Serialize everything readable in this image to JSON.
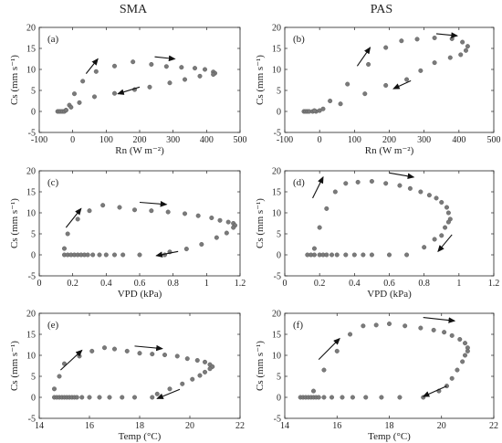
{
  "column_titles": [
    "SMA",
    "PAS"
  ],
  "chart_data": [
    {
      "type": "scatter",
      "panel": "(a)",
      "column": "SMA",
      "xlabel": "Rn (W m⁻²)",
      "ylabel": "Cs (mm s⁻¹)",
      "xlim": [
        -100,
        500
      ],
      "ylim": [
        -5,
        20
      ],
      "xticks": [
        -100,
        0,
        100,
        200,
        300,
        400,
        500
      ],
      "yticks": [
        -5,
        0,
        5,
        10,
        15,
        20
      ],
      "points": [
        [
          -45,
          0
        ],
        [
          -40,
          0
        ],
        [
          -35,
          0
        ],
        [
          -30,
          0
        ],
        [
          -25,
          0
        ],
        [
          -20,
          0.3
        ],
        [
          -10,
          1.5
        ],
        [
          5,
          4.2
        ],
        [
          30,
          7.2
        ],
        [
          70,
          9.5
        ],
        [
          125,
          10.8
        ],
        [
          180,
          11.8
        ],
        [
          235,
          11.2
        ],
        [
          280,
          10.7
        ],
        [
          325,
          10.5
        ],
        [
          365,
          10.3
        ],
        [
          395,
          10
        ],
        [
          420,
          9.4
        ],
        [
          425,
          9.1
        ],
        [
          420,
          8.8
        ],
        [
          380,
          8.4
        ],
        [
          335,
          7.6
        ],
        [
          290,
          6.8
        ],
        [
          230,
          5.8
        ],
        [
          185,
          5.2
        ],
        [
          125,
          4.3
        ],
        [
          65,
          3.5
        ],
        [
          20,
          2.1
        ],
        [
          -5,
          1
        ],
        [
          -20,
          0.3
        ]
      ],
      "arrows": [
        [
          [
            40,
            9
          ],
          [
            75,
            12.5
          ]
        ],
        [
          [
            245,
            13
          ],
          [
            305,
            12.5
          ]
        ],
        [
          [
            200,
            5.8
          ],
          [
            135,
            4.2
          ]
        ]
      ]
    },
    {
      "type": "scatter",
      "panel": "(b)",
      "column": "PAS",
      "xlabel": "Rn (W m⁻²)",
      "ylabel": "Cs (mm s⁻¹)",
      "xlim": [
        -100,
        500
      ],
      "ylim": [
        -5,
        20
      ],
      "xticks": [
        -100,
        0,
        100,
        200,
        300,
        400,
        500
      ],
      "yticks": [
        -5,
        0,
        5,
        10,
        15,
        20
      ],
      "points": [
        [
          -45,
          0
        ],
        [
          -40,
          0
        ],
        [
          -35,
          0
        ],
        [
          -30,
          0
        ],
        [
          -20,
          0
        ],
        [
          -10,
          0
        ],
        [
          0,
          0.2
        ],
        [
          30,
          2.5
        ],
        [
          80,
          6.5
        ],
        [
          140,
          11.2
        ],
        [
          190,
          15.2
        ],
        [
          235,
          16.8
        ],
        [
          280,
          17.2
        ],
        [
          330,
          17.5
        ],
        [
          380,
          17.3
        ],
        [
          410,
          16.5
        ],
        [
          425,
          15.5
        ],
        [
          420,
          14.5
        ],
        [
          405,
          13.5
        ],
        [
          375,
          12.8
        ],
        [
          330,
          11.6
        ],
        [
          290,
          9.7
        ],
        [
          250,
          7.6
        ],
        [
          190,
          6.2
        ],
        [
          130,
          4.2
        ],
        [
          60,
          1.8
        ],
        [
          10,
          0.6
        ],
        [
          -15,
          0.2
        ]
      ],
      "arrows": [
        [
          [
            108,
            10.8
          ],
          [
            145,
            15.2
          ]
        ],
        [
          [
            335,
            18.5
          ],
          [
            395,
            18
          ]
        ],
        [
          [
            262,
            7.3
          ],
          [
            212,
            5.4
          ]
        ]
      ]
    },
    {
      "type": "scatter",
      "panel": "(c)",
      "column": "SMA",
      "xlabel": "VPD (kPa)",
      "ylabel": "Cs (mm s⁻¹)",
      "xlim": [
        0,
        1.2
      ],
      "ylim": [
        -5,
        20
      ],
      "xticks": [
        0,
        0.2,
        0.4,
        0.6,
        0.8,
        1,
        1.2
      ],
      "yticks": [
        -5,
        0,
        5,
        10,
        15,
        20
      ],
      "points": [
        [
          0.15,
          0
        ],
        [
          0.17,
          0
        ],
        [
          0.19,
          0
        ],
        [
          0.21,
          0
        ],
        [
          0.23,
          0
        ],
        [
          0.25,
          0
        ],
        [
          0.27,
          0
        ],
        [
          0.29,
          0
        ],
        [
          0.32,
          0
        ],
        [
          0.36,
          0
        ],
        [
          0.4,
          0
        ],
        [
          0.45,
          0
        ],
        [
          0.5,
          0
        ],
        [
          0.6,
          0
        ],
        [
          0.75,
          0
        ],
        [
          0.15,
          1.5
        ],
        [
          0.17,
          5
        ],
        [
          0.23,
          8.5
        ],
        [
          0.3,
          10.5
        ],
        [
          0.38,
          11.8
        ],
        [
          0.48,
          11.3
        ],
        [
          0.57,
          10.7
        ],
        [
          0.67,
          10.5
        ],
        [
          0.77,
          10.2
        ],
        [
          0.87,
          9.8
        ],
        [
          0.95,
          9.3
        ],
        [
          1.03,
          8.8
        ],
        [
          1.08,
          8.2
        ],
        [
          1.13,
          7.8
        ],
        [
          1.16,
          7.5
        ],
        [
          1.17,
          7
        ],
        [
          1.16,
          6.5
        ],
        [
          1.12,
          5.2
        ],
        [
          1.06,
          4.1
        ],
        [
          0.97,
          2.5
        ],
        [
          0.88,
          1.4
        ],
        [
          0.78,
          0.7
        ]
      ],
      "arrows": [
        [
          [
            0.16,
            6.5
          ],
          [
            0.25,
            11
          ]
        ],
        [
          [
            0.6,
            12.5
          ],
          [
            0.76,
            12
          ]
        ],
        [
          [
            0.83,
            0.8
          ],
          [
            0.7,
            -0.2
          ]
        ]
      ]
    },
    {
      "type": "scatter",
      "panel": "(d)",
      "column": "PAS",
      "xlabel": "VPD (kPa)",
      "ylabel": "Cs (mm s⁻¹)",
      "xlim": [
        0,
        1.2
      ],
      "ylim": [
        -5,
        20
      ],
      "xticks": [
        0,
        0.2,
        0.4,
        0.6,
        0.8,
        1,
        1.2
      ],
      "yticks": [
        -5,
        0,
        5,
        10,
        15,
        20
      ],
      "points": [
        [
          0.13,
          0
        ],
        [
          0.15,
          0
        ],
        [
          0.17,
          0
        ],
        [
          0.2,
          0
        ],
        [
          0.22,
          0
        ],
        [
          0.24,
          0
        ],
        [
          0.27,
          0
        ],
        [
          0.3,
          0
        ],
        [
          0.35,
          0
        ],
        [
          0.4,
          0
        ],
        [
          0.45,
          0
        ],
        [
          0.5,
          0
        ],
        [
          0.6,
          0
        ],
        [
          0.7,
          0
        ],
        [
          0.17,
          1.5
        ],
        [
          0.2,
          6.5
        ],
        [
          0.24,
          11
        ],
        [
          0.29,
          15
        ],
        [
          0.35,
          17
        ],
        [
          0.42,
          17.3
        ],
        [
          0.5,
          17.5
        ],
        [
          0.58,
          17
        ],
        [
          0.66,
          16.5
        ],
        [
          0.72,
          15.8
        ],
        [
          0.78,
          15
        ],
        [
          0.83,
          14.2
        ],
        [
          0.87,
          13.5
        ],
        [
          0.9,
          12.5
        ],
        [
          0.93,
          11.3
        ],
        [
          0.94,
          10
        ],
        [
          0.95,
          8.5
        ],
        [
          0.94,
          7.8
        ],
        [
          0.92,
          6.5
        ],
        [
          0.9,
          4.6
        ],
        [
          0.86,
          3.7
        ],
        [
          0.8,
          1.8
        ]
      ],
      "arrows": [
        [
          [
            0.16,
            13.5
          ],
          [
            0.22,
            18.5
          ]
        ],
        [
          [
            0.6,
            19.5
          ],
          [
            0.74,
            18.5
          ]
        ],
        [
          [
            0.96,
            4.8
          ],
          [
            0.88,
            0.8
          ]
        ]
      ]
    },
    {
      "type": "scatter",
      "panel": "(e)",
      "column": "SMA",
      "xlabel": "Temp (°C)",
      "ylabel": "Cs (mm s⁻¹)",
      "xlim": [
        14,
        22
      ],
      "ylim": [
        -5,
        20
      ],
      "xticks": [
        14,
        16,
        18,
        20,
        22
      ],
      "yticks": [
        -5,
        0,
        5,
        10,
        15,
        20
      ],
      "points": [
        [
          14.6,
          0
        ],
        [
          14.7,
          0
        ],
        [
          14.8,
          0
        ],
        [
          14.9,
          0
        ],
        [
          15,
          0
        ],
        [
          15.1,
          0
        ],
        [
          15.2,
          0
        ],
        [
          15.3,
          0
        ],
        [
          15.4,
          0
        ],
        [
          15.5,
          0
        ],
        [
          15.7,
          0
        ],
        [
          16,
          0
        ],
        [
          16.4,
          0
        ],
        [
          16.8,
          0
        ],
        [
          17.3,
          0
        ],
        [
          17.8,
          0
        ],
        [
          18.5,
          0
        ],
        [
          14.6,
          2
        ],
        [
          14.8,
          5
        ],
        [
          15,
          8
        ],
        [
          15.6,
          9.8
        ],
        [
          16.1,
          11
        ],
        [
          16.6,
          11.8
        ],
        [
          17,
          11.5
        ],
        [
          17.5,
          11
        ],
        [
          18,
          10.5
        ],
        [
          18.5,
          10.3
        ],
        [
          19,
          10.1
        ],
        [
          19.5,
          9.8
        ],
        [
          19.9,
          9.2
        ],
        [
          20.3,
          8.8
        ],
        [
          20.6,
          8.4
        ],
        [
          20.8,
          7.8
        ],
        [
          20.9,
          7.3
        ],
        [
          20.8,
          6.8
        ],
        [
          20.6,
          6
        ],
        [
          20.4,
          5.2
        ],
        [
          20.1,
          4.3
        ],
        [
          19.7,
          3.2
        ],
        [
          19.2,
          2
        ],
        [
          18.7,
          0.8
        ]
      ],
      "arrows": [
        [
          [
            14.85,
            6.5
          ],
          [
            15.7,
            11.2
          ]
        ],
        [
          [
            17.8,
            12.2
          ],
          [
            18.9,
            11.6
          ]
        ],
        [
          [
            19.6,
            1.9
          ],
          [
            18.7,
            -0.3
          ]
        ]
      ]
    },
    {
      "type": "scatter",
      "panel": "(f)",
      "column": "PAS",
      "xlabel": "Temp (°C)",
      "ylabel": "Cs (mm s⁻¹)",
      "xlim": [
        14,
        22
      ],
      "ylim": [
        -5,
        20
      ],
      "xticks": [
        14,
        16,
        18,
        20,
        22
      ],
      "yticks": [
        -5,
        0,
        5,
        10,
        15,
        20
      ],
      "points": [
        [
          14.6,
          0
        ],
        [
          14.7,
          0
        ],
        [
          14.8,
          0
        ],
        [
          14.9,
          0
        ],
        [
          15,
          0
        ],
        [
          15.1,
          0
        ],
        [
          15.2,
          0
        ],
        [
          15.3,
          0
        ],
        [
          15.5,
          0
        ],
        [
          15.8,
          0
        ],
        [
          16.2,
          0
        ],
        [
          16.6,
          0
        ],
        [
          17.1,
          0
        ],
        [
          17.7,
          0
        ],
        [
          18.4,
          0
        ],
        [
          19.3,
          0
        ],
        [
          15.1,
          1.5
        ],
        [
          15.5,
          6.5
        ],
        [
          16,
          11
        ],
        [
          16.5,
          15
        ],
        [
          17,
          17
        ],
        [
          17.5,
          17.2
        ],
        [
          18,
          17.5
        ],
        [
          18.6,
          17
        ],
        [
          19.2,
          16.5
        ],
        [
          19.7,
          16
        ],
        [
          20.1,
          15.5
        ],
        [
          20.4,
          14.7
        ],
        [
          20.7,
          13.8
        ],
        [
          20.9,
          12.9
        ],
        [
          21,
          11.8
        ],
        [
          21,
          11
        ],
        [
          20.9,
          10
        ],
        [
          20.8,
          8.5
        ],
        [
          20.6,
          6.5
        ],
        [
          20.4,
          4.5
        ],
        [
          20.2,
          2.7
        ],
        [
          19.9,
          1.5
        ]
      ],
      "arrows": [
        [
          [
            15.3,
            9
          ],
          [
            16.1,
            14
          ]
        ],
        [
          [
            19.3,
            19
          ],
          [
            20.5,
            18.2
          ]
        ],
        [
          [
            20.2,
            2.7
          ],
          [
            19.3,
            0.2
          ]
        ]
      ]
    }
  ]
}
